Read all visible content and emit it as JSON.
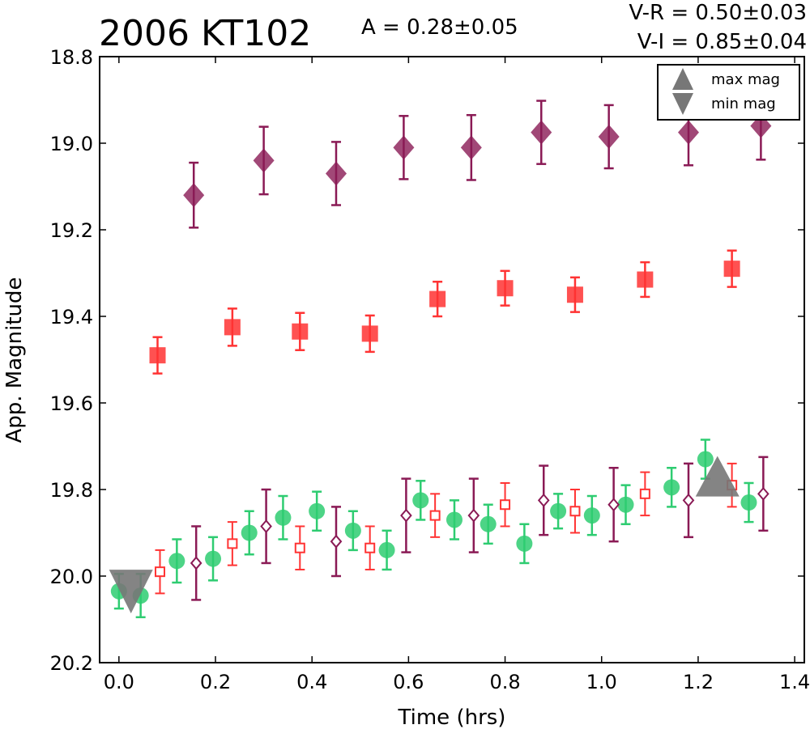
{
  "chart_data": {
    "type": "scatter",
    "title": "2006 KT102",
    "amplitude_label": "A  = 0.28±0.05",
    "color_labels": [
      "V-R = 0.50±0.03",
      "V-I  = 0.85±0.04"
    ],
    "xlabel": "Time (hrs)",
    "ylabel": "App. Magnitude",
    "xlim": [
      -0.04,
      1.42
    ],
    "ylim": [
      20.2,
      18.8
    ],
    "y_inverted": true,
    "x_ticks": [
      "0.0",
      "0.2",
      "0.4",
      "0.6",
      "0.8",
      "1.0",
      "1.2",
      "1.4"
    ],
    "y_ticks": [
      "18.8",
      "19.0",
      "19.2",
      "19.4",
      "19.6",
      "19.8",
      "20.0",
      "20.2"
    ],
    "legend": {
      "placement": "top-right",
      "entries": [
        {
          "marker": "triangle-up",
          "label": "max mag"
        },
        {
          "marker": "triangle-down",
          "label": "min mag"
        }
      ]
    },
    "colors": {
      "v": "#2ecc71",
      "r": "#ff3333",
      "i": "#8a1a55",
      "marker": "#777777"
    },
    "series": [
      {
        "marker": "diamond-filled",
        "color": "#8a1a55",
        "points": [
          {
            "x": 0.155,
            "y": 19.12,
            "err": 0.075
          },
          {
            "x": 0.3,
            "y": 19.04,
            "err": 0.078
          },
          {
            "x": 0.45,
            "y": 19.07,
            "err": 0.073
          },
          {
            "x": 0.59,
            "y": 19.01,
            "err": 0.073
          },
          {
            "x": 0.73,
            "y": 19.01,
            "err": 0.075
          },
          {
            "x": 0.875,
            "y": 18.975,
            "err": 0.073
          },
          {
            "x": 1.015,
            "y": 18.985,
            "err": 0.073
          },
          {
            "x": 1.18,
            "y": 18.975,
            "err": 0.076
          },
          {
            "x": 1.33,
            "y": 18.96,
            "err": 0.078
          }
        ]
      },
      {
        "marker": "square-filled",
        "color": "#ff3333",
        "points": [
          {
            "x": 0.08,
            "y": 19.49,
            "err": 0.042
          },
          {
            "x": 0.235,
            "y": 19.425,
            "err": 0.043
          },
          {
            "x": 0.375,
            "y": 19.435,
            "err": 0.043
          },
          {
            "x": 0.52,
            "y": 19.44,
            "err": 0.042
          },
          {
            "x": 0.66,
            "y": 19.36,
            "err": 0.04
          },
          {
            "x": 0.8,
            "y": 19.335,
            "err": 0.04
          },
          {
            "x": 0.945,
            "y": 19.35,
            "err": 0.04
          },
          {
            "x": 1.09,
            "y": 19.315,
            "err": 0.04
          },
          {
            "x": 1.27,
            "y": 19.29,
            "err": 0.042
          }
        ]
      },
      {
        "marker": "circle-filled",
        "color": "#2ecc71",
        "points": [
          {
            "x": 0.0,
            "y": 20.035,
            "err": 0.04
          },
          {
            "x": 0.045,
            "y": 20.045,
            "err": 0.05
          },
          {
            "x": 0.12,
            "y": 19.965,
            "err": 0.05
          },
          {
            "x": 0.195,
            "y": 19.96,
            "err": 0.05
          },
          {
            "x": 0.27,
            "y": 19.9,
            "err": 0.05
          },
          {
            "x": 0.34,
            "y": 19.865,
            "err": 0.05
          },
          {
            "x": 0.41,
            "y": 19.85,
            "err": 0.045
          },
          {
            "x": 0.485,
            "y": 19.895,
            "err": 0.045
          },
          {
            "x": 0.555,
            "y": 19.94,
            "err": 0.045
          },
          {
            "x": 0.625,
            "y": 19.825,
            "err": 0.045
          },
          {
            "x": 0.695,
            "y": 19.87,
            "err": 0.045
          },
          {
            "x": 0.765,
            "y": 19.88,
            "err": 0.045
          },
          {
            "x": 0.84,
            "y": 19.925,
            "err": 0.045
          },
          {
            "x": 0.91,
            "y": 19.85,
            "err": 0.04
          },
          {
            "x": 0.98,
            "y": 19.86,
            "err": 0.045
          },
          {
            "x": 1.05,
            "y": 19.835,
            "err": 0.045
          },
          {
            "x": 1.145,
            "y": 19.795,
            "err": 0.045
          },
          {
            "x": 1.215,
            "y": 19.73,
            "err": 0.045
          },
          {
            "x": 1.305,
            "y": 19.83,
            "err": 0.045
          }
        ]
      },
      {
        "marker": "square-open",
        "color": "#ff3333",
        "points": [
          {
            "x": 0.085,
            "y": 19.99,
            "err": 0.05
          },
          {
            "x": 0.235,
            "y": 19.925,
            "err": 0.05
          },
          {
            "x": 0.375,
            "y": 19.935,
            "err": 0.05
          },
          {
            "x": 0.52,
            "y": 19.935,
            "err": 0.05
          },
          {
            "x": 0.655,
            "y": 19.86,
            "err": 0.05
          },
          {
            "x": 0.8,
            "y": 19.835,
            "err": 0.05
          },
          {
            "x": 0.945,
            "y": 19.85,
            "err": 0.05
          },
          {
            "x": 1.09,
            "y": 19.81,
            "err": 0.05
          },
          {
            "x": 1.27,
            "y": 19.79,
            "err": 0.05
          }
        ]
      },
      {
        "marker": "diamond-open",
        "color": "#8a1a55",
        "points": [
          {
            "x": 0.16,
            "y": 19.97,
            "err": 0.085
          },
          {
            "x": 0.305,
            "y": 19.885,
            "err": 0.085
          },
          {
            "x": 0.45,
            "y": 19.92,
            "err": 0.08
          },
          {
            "x": 0.595,
            "y": 19.86,
            "err": 0.085
          },
          {
            "x": 0.735,
            "y": 19.86,
            "err": 0.085
          },
          {
            "x": 0.88,
            "y": 19.825,
            "err": 0.08
          },
          {
            "x": 1.025,
            "y": 19.835,
            "err": 0.085
          },
          {
            "x": 1.18,
            "y": 19.825,
            "err": 0.085
          },
          {
            "x": 1.335,
            "y": 19.81,
            "err": 0.085
          }
        ]
      }
    ],
    "markers": [
      {
        "type": "max",
        "shape": "triangle-up",
        "x": 1.24,
        "y": 19.775
      },
      {
        "type": "min",
        "shape": "triangle-down",
        "x": 0.025,
        "y": 20.045
      }
    ]
  }
}
